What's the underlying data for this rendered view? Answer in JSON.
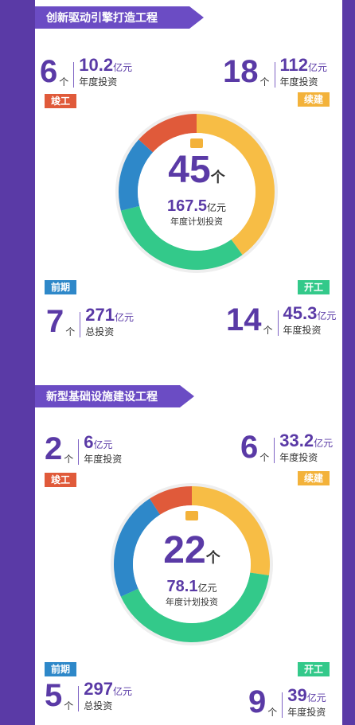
{
  "sections": [
    {
      "title": "创新驱动引擎打造工程",
      "center": {
        "count": "45",
        "count_unit": "个",
        "plan_invest": "167.5",
        "plan_unit": "亿元",
        "plan_label": "年度计划投资"
      },
      "stats": {
        "completed": {
          "tag": "竣工",
          "count": "6",
          "unit": "个",
          "amount": "10.2",
          "amount_unit": "亿元",
          "amount_label": "年度投资"
        },
        "continued": {
          "tag": "续建",
          "count": "18",
          "unit": "个",
          "amount": "112",
          "amount_unit": "亿元",
          "amount_label": "年度投资"
        },
        "prelim": {
          "tag": "前期",
          "count": "7",
          "unit": "个",
          "amount": "271",
          "amount_unit": "亿元",
          "amount_label": "总投资"
        },
        "started": {
          "tag": "开工",
          "count": "14",
          "unit": "个",
          "amount": "45.3",
          "amount_unit": "亿元",
          "amount_label": "年度投资"
        }
      }
    },
    {
      "title": "新型基础设施建设工程",
      "center": {
        "count": "22",
        "count_unit": "个",
        "plan_invest": "78.1",
        "plan_unit": "亿元",
        "plan_label": "年度计划投资"
      },
      "stats": {
        "completed": {
          "tag": "竣工",
          "count": "2",
          "unit": "个",
          "amount": "6",
          "amount_unit": "亿元",
          "amount_label": "年度投资"
        },
        "continued": {
          "tag": "续建",
          "count": "6",
          "unit": "个",
          "amount": "33.2",
          "amount_unit": "亿元",
          "amount_label": "年度投资"
        },
        "prelim": {
          "tag": "前期",
          "count": "5",
          "unit": "个",
          "amount": "297",
          "amount_unit": "亿元",
          "amount_label": "总投资"
        },
        "started": {
          "tag": "开工",
          "count": "9",
          "unit": "个",
          "amount": "39",
          "amount_unit": "亿元",
          "amount_label": "年度投资"
        }
      }
    }
  ],
  "colors": {
    "completed": "#e05a3a",
    "continued": "#f7bd45",
    "prelim": "#2e88c9",
    "started": "#33c98a",
    "accent": "#5a3aa6"
  },
  "chart_data": [
    {
      "type": "pie",
      "title": "创新驱动引擎打造工程",
      "categories": [
        "竣工",
        "续建",
        "开工",
        "前期"
      ],
      "values": [
        6,
        18,
        14,
        7
      ]
    },
    {
      "type": "pie",
      "title": "新型基础设施建设工程",
      "categories": [
        "竣工",
        "续建",
        "开工",
        "前期"
      ],
      "values": [
        2,
        6,
        9,
        5
      ]
    }
  ]
}
